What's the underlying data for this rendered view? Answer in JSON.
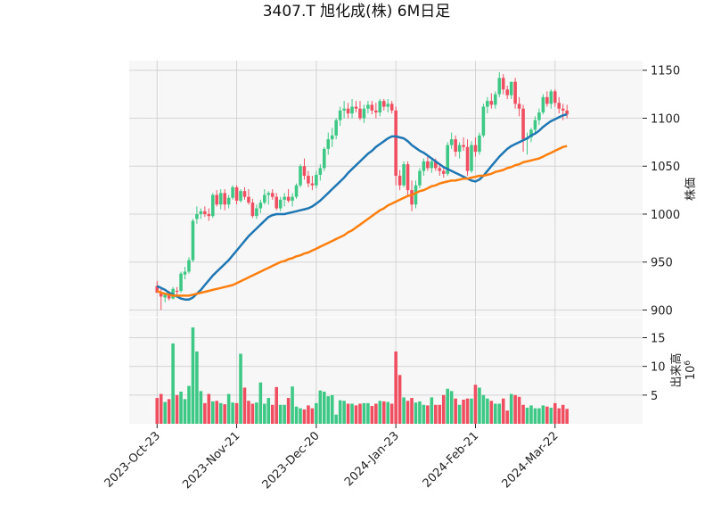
{
  "chart_data": {
    "type": "candlestick",
    "title": "3407.T 旭化成(株) 6M日足",
    "price_axis": {
      "label": "株価",
      "ticks": [
        900,
        950,
        1000,
        1050,
        1100,
        1150
      ],
      "ylim": [
        893,
        1160
      ]
    },
    "volume_axis": {
      "label": "出来高",
      "scale_label": "10",
      "scale_exp": "6",
      "ticks": [
        5,
        10,
        15
      ],
      "ylim": [
        0,
        18.5
      ]
    },
    "x_ticks": [
      {
        "label": "2023-Oct-23",
        "index": 0
      },
      {
        "label": "2023-Nov-21",
        "index": 20
      },
      {
        "label": "2023-Dec-20",
        "index": 40
      },
      {
        "label": "2024-Jan-23",
        "index": 60
      },
      {
        "label": "2024-Feb-21",
        "index": 80
      },
      {
        "label": "2024-Mar-22",
        "index": 100
      }
    ],
    "x_range": [
      -7,
      122
    ],
    "grid": true,
    "up_color": "#3dc985",
    "down_color": "#ef4f60",
    "ma_colors": [
      "#1f77b4",
      "#ff7f0e"
    ],
    "ohlc": [
      [
        925,
        930,
        918,
        918
      ],
      [
        918,
        922,
        900,
        914
      ],
      [
        913,
        918,
        908,
        916
      ],
      [
        916,
        920,
        910,
        912
      ],
      [
        912,
        924,
        911,
        922
      ],
      [
        920,
        924,
        915,
        919
      ],
      [
        920,
        940,
        918,
        938
      ],
      [
        937,
        945,
        932,
        940
      ],
      [
        940,
        955,
        938,
        952
      ],
      [
        952,
        995,
        950,
        993
      ],
      [
        995,
        1008,
        990,
        1000
      ],
      [
        1000,
        1006,
        995,
        1003
      ],
      [
        1003,
        1008,
        997,
        1000
      ],
      [
        1000,
        1006,
        993,
        998
      ],
      [
        998,
        1022,
        996,
        1020
      ],
      [
        1020,
        1025,
        1008,
        1010
      ],
      [
        1010,
        1026,
        1005,
        1022
      ],
      [
        1022,
        1026,
        1004,
        1010
      ],
      [
        1010,
        1020,
        1006,
        1017
      ],
      [
        1017,
        1030,
        1015,
        1028
      ],
      [
        1028,
        1030,
        1010,
        1014
      ],
      [
        1014,
        1026,
        1012,
        1024
      ],
      [
        1024,
        1028,
        1015,
        1018
      ],
      [
        1018,
        1026,
        1010,
        1012
      ],
      [
        1012,
        1016,
        996,
        998
      ],
      [
        998,
        1010,
        995,
        1006
      ],
      [
        1006,
        1015,
        1001,
        1012
      ],
      [
        1012,
        1026,
        1010,
        1020
      ],
      [
        1020,
        1024,
        1010,
        1022
      ],
      [
        1022,
        1026,
        1015,
        1018
      ],
      [
        1018,
        1022,
        1004,
        1006
      ],
      [
        1006,
        1018,
        1003,
        1015
      ],
      [
        1015,
        1022,
        1008,
        1018
      ],
      [
        1018,
        1026,
        1012,
        1014
      ],
      [
        1014,
        1022,
        1008,
        1018
      ],
      [
        1018,
        1032,
        1016,
        1030
      ],
      [
        1030,
        1052,
        1028,
        1050
      ],
      [
        1050,
        1058,
        1036,
        1040
      ],
      [
        1040,
        1045,
        1028,
        1032
      ],
      [
        1032,
        1040,
        1025,
        1030
      ],
      [
        1030,
        1045,
        1027,
        1041
      ],
      [
        1041,
        1052,
        1035,
        1048
      ],
      [
        1048,
        1070,
        1045,
        1068
      ],
      [
        1068,
        1085,
        1062,
        1078
      ],
      [
        1078,
        1090,
        1070,
        1082
      ],
      [
        1082,
        1100,
        1078,
        1098
      ],
      [
        1098,
        1112,
        1092,
        1108
      ],
      [
        1108,
        1118,
        1100,
        1110
      ],
      [
        1110,
        1116,
        1100,
        1105
      ],
      [
        1105,
        1120,
        1100,
        1112
      ],
      [
        1112,
        1118,
        1106,
        1110
      ],
      [
        1110,
        1118,
        1098,
        1100
      ],
      [
        1100,
        1114,
        1095,
        1110
      ],
      [
        1110,
        1118,
        1105,
        1114
      ],
      [
        1114,
        1118,
        1104,
        1108
      ],
      [
        1108,
        1116,
        1100,
        1106
      ],
      [
        1106,
        1120,
        1102,
        1118
      ],
      [
        1118,
        1120,
        1108,
        1112
      ],
      [
        1112,
        1120,
        1106,
        1115
      ],
      [
        1115,
        1118,
        1105,
        1108
      ],
      [
        1108,
        1112,
        1030,
        1040
      ],
      [
        1040,
        1046,
        1025,
        1030
      ],
      [
        1030,
        1055,
        1028,
        1052
      ],
      [
        1052,
        1055,
        1020,
        1025
      ],
      [
        1025,
        1035,
        1003,
        1010
      ],
      [
        1010,
        1035,
        1006,
        1030
      ],
      [
        1030,
        1048,
        1027,
        1045
      ],
      [
        1045,
        1058,
        1040,
        1055
      ],
      [
        1055,
        1060,
        1045,
        1048
      ],
      [
        1048,
        1058,
        1043,
        1055
      ],
      [
        1055,
        1058,
        1045,
        1048
      ],
      [
        1048,
        1052,
        1040,
        1045
      ],
      [
        1045,
        1050,
        1038,
        1042
      ],
      [
        1042,
        1075,
        1040,
        1072
      ],
      [
        1072,
        1085,
        1068,
        1078
      ],
      [
        1078,
        1082,
        1060,
        1065
      ],
      [
        1065,
        1075,
        1058,
        1072
      ],
      [
        1072,
        1080,
        1066,
        1070
      ],
      [
        1070,
        1078,
        1040,
        1045
      ],
      [
        1045,
        1076,
        1043,
        1072
      ],
      [
        1072,
        1080,
        1060,
        1065
      ],
      [
        1065,
        1085,
        1062,
        1082
      ],
      [
        1082,
        1115,
        1080,
        1112
      ],
      [
        1112,
        1122,
        1105,
        1118
      ],
      [
        1118,
        1126,
        1110,
        1114
      ],
      [
        1114,
        1128,
        1110,
        1125
      ],
      [
        1125,
        1148,
        1122,
        1142
      ],
      [
        1142,
        1146,
        1125,
        1130
      ],
      [
        1130,
        1134,
        1120,
        1124
      ],
      [
        1124,
        1136,
        1120,
        1138
      ],
      [
        1138,
        1142,
        1110,
        1115
      ],
      [
        1115,
        1122,
        1102,
        1110
      ],
      [
        1110,
        1114,
        1065,
        1078
      ],
      [
        1078,
        1085,
        1062,
        1080
      ],
      [
        1080,
        1090,
        1075,
        1088
      ],
      [
        1088,
        1102,
        1085,
        1098
      ],
      [
        1098,
        1110,
        1093,
        1106
      ],
      [
        1106,
        1125,
        1104,
        1122
      ],
      [
        1122,
        1128,
        1112,
        1115
      ],
      [
        1115,
        1130,
        1110,
        1128
      ],
      [
        1128,
        1130,
        1112,
        1116
      ],
      [
        1116,
        1122,
        1105,
        1110
      ],
      [
        1110,
        1115,
        1098,
        1108
      ],
      [
        1108,
        1114,
        1100,
        1104
      ]
    ],
    "volume": [
      4.5,
      5.2,
      3.8,
      4.3,
      14.0,
      5.0,
      5.6,
      4.3,
      6.6,
      16.8,
      12.6,
      5.7,
      3.6,
      5.2,
      3.9,
      4.0,
      3.6,
      3.4,
      5.2,
      3.7,
      3.6,
      12.2,
      6.3,
      4.0,
      3.5,
      3.7,
      7.2,
      3.5,
      4.5,
      3.3,
      6.4,
      3.3,
      3.3,
      4.5,
      6.5,
      3.0,
      2.7,
      2.5,
      3.2,
      2.7,
      3.6,
      5.8,
      5.6,
      4.8,
      5.0,
      1.6,
      4.1,
      4.0,
      3.5,
      3.5,
      3.2,
      3.5,
      3.6,
      3.6,
      3.1,
      3.5,
      4.0,
      3.9,
      3.8,
      3.5,
      12.6,
      8.5,
      4.6,
      4.0,
      4.5,
      3.7,
      3.9,
      3.3,
      3.2,
      4.6,
      3.3,
      3.3,
      5.0,
      6.1,
      5.7,
      4.4,
      3.3,
      4.2,
      4.4,
      4.4,
      6.8,
      6.3,
      5.0,
      4.4,
      4.0,
      3.5,
      3.5,
      4.4,
      2.3,
      5.2,
      5.0,
      4.7,
      3.3,
      2.8,
      3.2,
      2.7,
      2.7,
      3.2,
      3.0,
      2.8,
      3.6,
      2.7,
      3.3,
      2.6
    ],
    "ma": [
      [
        925,
        923,
        921,
        918,
        916,
        914,
        912,
        911,
        911,
        913,
        917,
        921,
        926,
        931,
        936,
        940,
        944,
        948,
        952,
        957,
        962,
        967,
        972,
        977,
        981,
        985,
        989,
        993,
        997,
        999,
        1000,
        1000,
        1000,
        1001,
        1002,
        1003,
        1004,
        1005,
        1006,
        1008,
        1011,
        1014,
        1018,
        1022,
        1026,
        1030,
        1034,
        1038,
        1043,
        1047,
        1051,
        1055,
        1059,
        1063,
        1066,
        1070,
        1073,
        1076,
        1079,
        1081,
        1081,
        1080,
        1079,
        1076,
        1072,
        1069,
        1066,
        1064,
        1061,
        1058,
        1055,
        1052,
        1049,
        1047,
        1045,
        1043,
        1041,
        1039,
        1037,
        1035,
        1034,
        1036,
        1040,
        1045,
        1050,
        1055,
        1060,
        1064,
        1068,
        1071,
        1073,
        1075,
        1077,
        1079,
        1082,
        1084,
        1087,
        1091,
        1094,
        1097,
        1099,
        1101,
        1103,
        1104
      ],
      [
        920,
        918,
        917,
        916,
        915,
        915,
        915,
        915,
        915,
        916,
        917,
        918,
        919,
        920,
        921,
        922,
        923,
        924,
        925,
        926,
        928,
        930,
        932,
        934,
        936,
        938,
        940,
        942,
        944,
        946,
        948,
        950,
        951,
        953,
        954,
        956,
        957,
        959,
        960,
        962,
        964,
        966,
        968,
        970,
        972,
        974,
        976,
        978,
        981,
        983,
        986,
        989,
        992,
        995,
        998,
        1001,
        1004,
        1006,
        1009,
        1011,
        1013,
        1015,
        1017,
        1019,
        1020,
        1022,
        1024,
        1025,
        1027,
        1029,
        1030,
        1032,
        1033,
        1034,
        1035,
        1035,
        1036,
        1037,
        1037,
        1038,
        1039,
        1040,
        1040,
        1041,
        1042,
        1044,
        1045,
        1046,
        1048,
        1049,
        1051,
        1052,
        1054,
        1055,
        1056,
        1057,
        1058,
        1060,
        1062,
        1064,
        1066,
        1068,
        1070,
        1071
      ]
    ]
  }
}
